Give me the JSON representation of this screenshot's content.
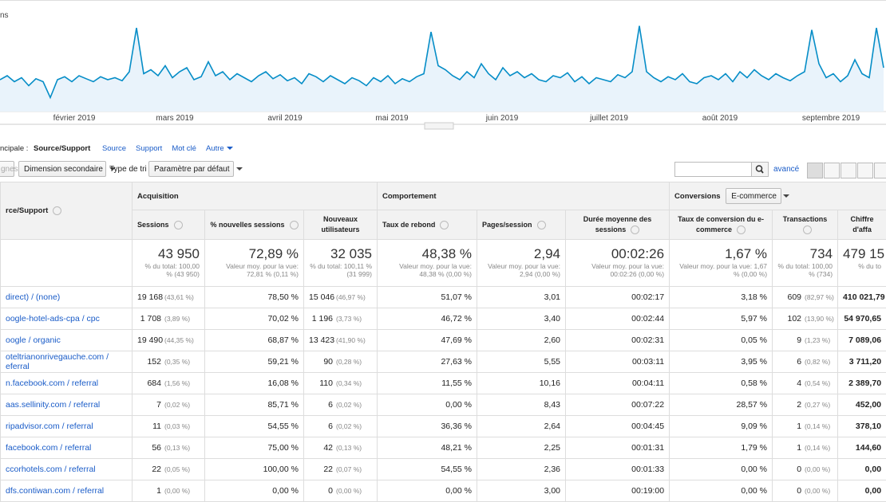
{
  "chart_data": {
    "type": "line",
    "title": "ns",
    "color": "#058dc7",
    "ylim": [
      0,
      480
    ],
    "x_axis_labels": [
      "février 2019",
      "mars 2019",
      "avril 2019",
      "mai 2019",
      "juin 2019",
      "juillet 2019",
      "août 2019",
      "septembre 2019"
    ],
    "values": [
      160,
      180,
      150,
      170,
      130,
      165,
      150,
      70,
      160,
      175,
      150,
      180,
      165,
      150,
      175,
      160,
      170,
      155,
      200,
      420,
      190,
      210,
      180,
      230,
      170,
      200,
      220,
      160,
      175,
      250,
      180,
      200,
      160,
      190,
      170,
      150,
      180,
      200,
      165,
      185,
      155,
      170,
      140,
      190,
      175,
      150,
      180,
      160,
      140,
      170,
      155,
      130,
      170,
      150,
      180,
      140,
      165,
      150,
      175,
      190,
      400,
      230,
      210,
      180,
      160,
      200,
      170,
      240,
      190,
      160,
      220,
      180,
      200,
      170,
      190,
      160,
      150,
      180,
      170,
      195,
      150,
      175,
      140,
      170,
      160,
      150,
      185,
      170,
      200,
      430,
      200,
      170,
      150,
      175,
      160,
      190,
      150,
      140,
      170,
      180,
      160,
      190,
      150,
      200,
      170,
      210,
      180,
      160,
      190,
      170,
      155,
      180,
      200,
      410,
      240,
      170,
      190,
      150,
      180,
      260,
      190,
      170,
      420,
      220
    ]
  },
  "dimension_bar": {
    "label": "ncipale :",
    "active": "Source/Support",
    "links": [
      "Source",
      "Support",
      "Mot clé",
      "Autre"
    ]
  },
  "toolbar": {
    "rows_button": "gnes",
    "secondary": "Dimension secondaire",
    "sort_label": "Type de tri :",
    "sort_value": "Paramètre par défaut",
    "advanced": "avancé"
  },
  "table": {
    "groups": {
      "acquisition": "Acquisition",
      "behaviour": "Comportement",
      "conversions": "Conversions",
      "conversions_select": "E-commerce"
    },
    "dimension_header": "rce/Support",
    "headers": [
      "Sessions",
      "% nouvelles sessions",
      "Nouveaux utilisateurs",
      "Taux de rebond",
      "Pages/session",
      "Durée moyenne des sessions",
      "Taux de conversion du e-commerce",
      "Transactions",
      "Chiffre d'affa"
    ],
    "totals": [
      [
        "43 950",
        "% du total: 100,00 % (43 950)"
      ],
      [
        "72,89 %",
        "Valeur moy. pour la vue: 72,81 % (0,11 %)"
      ],
      [
        "32 035",
        "% du total: 100,11 % (31 999)"
      ],
      [
        "48,38 %",
        "Valeur moy. pour la vue: 48,38 % (0,00 %)"
      ],
      [
        "2,94",
        "Valeur moy. pour la vue: 2,94 (0,00 %)"
      ],
      [
        "00:02:26",
        "Valeur moy. pour la vue: 00:02:26 (0,00 %)"
      ],
      [
        "1,67 %",
        "Valeur moy. pour la vue: 1,67 % (0,00 %)"
      ],
      [
        "734",
        "% du total: 100,00 % (734)"
      ],
      [
        "479 15",
        "% du to"
      ]
    ],
    "rows": [
      [
        "direct) / (none)",
        "19 168",
        "(43,61 %)",
        "78,50 %",
        "15 046",
        "(46,97 %)",
        "51,07 %",
        "3,01",
        "00:02:17",
        "3,18 %",
        "609",
        "(82,97 %)",
        "410 021,79"
      ],
      [
        "oogle-hotel-ads-cpa / cpc",
        "1 708",
        "(3,89 %)",
        "70,02 %",
        "1 196",
        "(3,73 %)",
        "46,72 %",
        "3,40",
        "00:02:44",
        "5,97 %",
        "102",
        "(13,90 %)",
        "54 970,65"
      ],
      [
        "oogle / organic",
        "19 490",
        "(44,35 %)",
        "68,87 %",
        "13 423",
        "(41,90 %)",
        "47,69 %",
        "2,60",
        "00:02:31",
        "0,05 %",
        "9",
        "(1,23 %)",
        "7 089,06"
      ],
      [
        "oteltrianonrivegauche.com / eferral",
        "152",
        "(0,35 %)",
        "59,21 %",
        "90",
        "(0,28 %)",
        "27,63 %",
        "5,55",
        "00:03:11",
        "3,95 %",
        "6",
        "(0,82 %)",
        "3 711,20"
      ],
      [
        "n.facebook.com / referral",
        "684",
        "(1,56 %)",
        "16,08 %",
        "110",
        "(0,34 %)",
        "11,55 %",
        "10,16",
        "00:04:11",
        "0,58 %",
        "4",
        "(0,54 %)",
        "2 389,70"
      ],
      [
        "aas.sellinity.com / referral",
        "7",
        "(0,02 %)",
        "85,71 %",
        "6",
        "(0,02 %)",
        "0,00 %",
        "8,43",
        "00:07:22",
        "28,57 %",
        "2",
        "(0,27 %)",
        "452,00"
      ],
      [
        "ripadvisor.com / referral",
        "11",
        "(0,03 %)",
        "54,55 %",
        "6",
        "(0,02 %)",
        "36,36 %",
        "2,64",
        "00:04:45",
        "9,09 %",
        "1",
        "(0,14 %)",
        "378,10"
      ],
      [
        "facebook.com / referral",
        "56",
        "(0,13 %)",
        "75,00 %",
        "42",
        "(0,13 %)",
        "48,21 %",
        "2,25",
        "00:01:31",
        "1,79 %",
        "1",
        "(0,14 %)",
        "144,60"
      ],
      [
        "ccorhotels.com / referral",
        "22",
        "(0,05 %)",
        "100,00 %",
        "22",
        "(0,07 %)",
        "54,55 %",
        "2,36",
        "00:01:33",
        "0,00 %",
        "0",
        "(0,00 %)",
        "0,00"
      ],
      [
        "dfs.contiwan.com / referral",
        "1",
        "(0,00 %)",
        "0,00 %",
        "0",
        "(0,00 %)",
        "0,00 %",
        "3,00",
        "00:19:00",
        "0,00 %",
        "0",
        "(0,00 %)",
        "0,00"
      ]
    ]
  }
}
